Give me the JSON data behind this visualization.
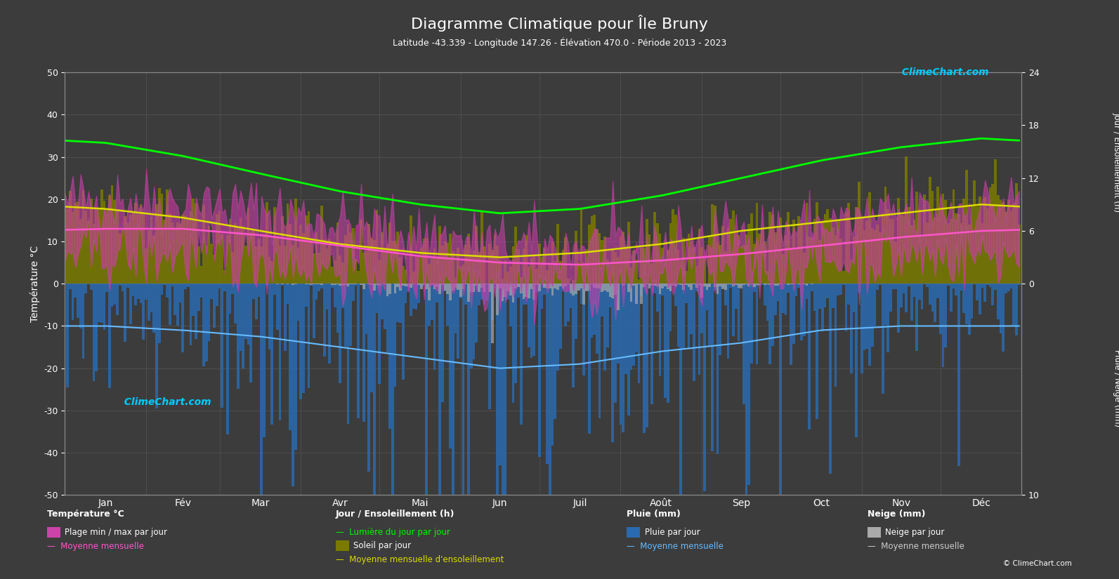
{
  "title": "Diagramme Climatique pour Île Bruny",
  "subtitle": "Latitude -43.339 - Longitude 147.26 - Élévation 470.0 - Période 2013 - 2023",
  "months": [
    "Jan",
    "Fév",
    "Mar",
    "Avr",
    "Mai",
    "Jun",
    "Juil",
    "Août",
    "Sep",
    "Oct",
    "Nov",
    "Déc"
  ],
  "background_color": "#3c3c3c",
  "grid_color": "#555555",
  "text_color": "#ffffff",
  "temp_mean_monthly": [
    13.0,
    13.0,
    11.5,
    9.0,
    6.5,
    5.0,
    4.5,
    5.5,
    7.0,
    9.0,
    11.0,
    12.5
  ],
  "temp_max_monthly": [
    20.0,
    19.5,
    17.5,
    14.5,
    11.5,
    9.0,
    8.5,
    9.5,
    11.5,
    14.0,
    16.5,
    18.5
  ],
  "temp_min_monthly": [
    7.0,
    7.0,
    6.0,
    4.0,
    2.0,
    0.5,
    0.0,
    1.0,
    3.0,
    5.0,
    6.5,
    7.0
  ],
  "sun_hours_daily_mean": [
    8.5,
    7.5,
    6.0,
    4.5,
    3.5,
    3.0,
    3.5,
    4.5,
    6.0,
    7.0,
    8.0,
    9.0
  ],
  "daylight_hours_daily_mean": [
    16.0,
    14.5,
    12.5,
    10.5,
    9.0,
    8.0,
    8.5,
    10.0,
    12.0,
    14.0,
    15.5,
    16.5
  ],
  "rain_daily_mean": [
    2.0,
    2.2,
    2.5,
    3.0,
    3.5,
    4.0,
    3.8,
    3.2,
    2.8,
    2.2,
    2.0,
    2.0
  ],
  "snow_daily_mean": [
    0.0,
    0.0,
    0.0,
    0.05,
    0.2,
    0.4,
    0.5,
    0.3,
    0.1,
    0.0,
    0.0,
    0.0
  ],
  "sun_scale": 50,
  "rain_scale": 5,
  "seed": 42
}
